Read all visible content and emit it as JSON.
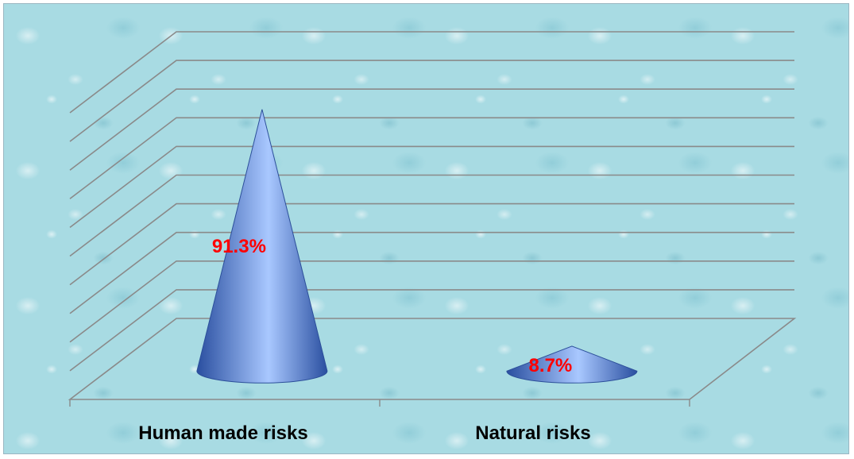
{
  "chart_data": {
    "type": "bar",
    "categories": [
      "Human made risks",
      "Natural risks"
    ],
    "values": [
      91.3,
      8.7
    ],
    "data_labels": [
      "91.3%",
      "8.7%"
    ],
    "ylim": [
      0,
      100
    ],
    "grid": true,
    "style": "3d-cone",
    "colors": {
      "cone": "#4a78d0",
      "cone_highlight": "#a9c8ff",
      "data_label": "#ff0000",
      "gridline": "#8a8a8a",
      "background": "#a8dbe3"
    }
  }
}
